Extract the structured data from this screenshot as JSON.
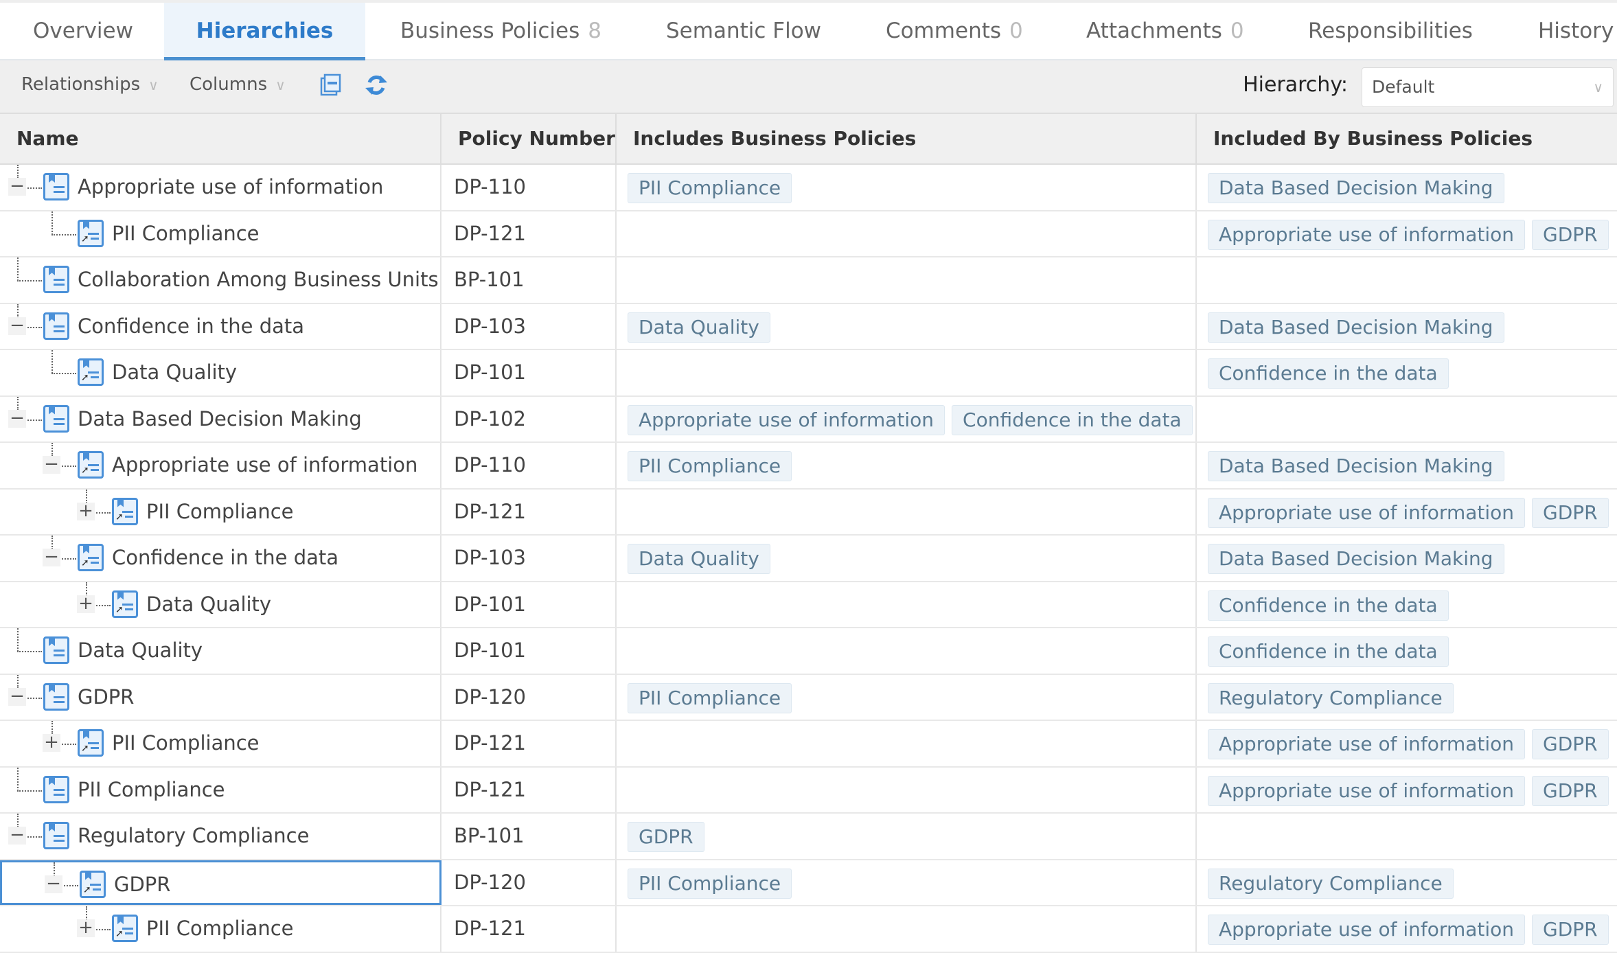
{
  "tabs": [
    {
      "label": "Overview",
      "count": null,
      "active": false
    },
    {
      "label": "Hierarchies",
      "count": null,
      "active": true
    },
    {
      "label": "Business Policies",
      "count": "8",
      "active": false
    },
    {
      "label": "Semantic Flow",
      "count": null,
      "active": false
    },
    {
      "label": "Comments",
      "count": "0",
      "active": false
    },
    {
      "label": "Attachments",
      "count": "0",
      "active": false
    },
    {
      "label": "Responsibilities",
      "count": null,
      "active": false
    },
    {
      "label": "History",
      "count": null,
      "active": false
    }
  ],
  "toolbar": {
    "relationships_label": "Relationships",
    "columns_label": "Columns",
    "collapse_icon": "collapse-all-icon",
    "refresh_icon": "refresh-icon",
    "hierarchy_label": "Hierarchy:",
    "hierarchy_value": "Default"
  },
  "columns": [
    "Name",
    "Policy Number",
    "Includes Business Policies",
    "Included By Business Policies"
  ],
  "accent": "#2e7bc9",
  "rows": [
    {
      "level": 0,
      "expander": "minus",
      "shortcut": false,
      "name": "Appropriate use of information",
      "number": "DP-110",
      "includes": [
        "PII Compliance"
      ],
      "included_by": [
        "Data Based Decision Making"
      ]
    },
    {
      "level": 1,
      "expander": "none",
      "shortcut": true,
      "name": "PII Compliance",
      "number": "DP-121",
      "includes": [],
      "included_by": [
        "Appropriate use of information",
        "GDPR"
      ]
    },
    {
      "level": 0,
      "expander": "none",
      "shortcut": false,
      "name": "Collaboration Among Business Units",
      "number": "BP-101",
      "includes": [],
      "included_by": []
    },
    {
      "level": 0,
      "expander": "minus",
      "shortcut": false,
      "name": "Confidence in the data",
      "number": "DP-103",
      "includes": [
        "Data Quality"
      ],
      "included_by": [
        "Data Based Decision Making"
      ]
    },
    {
      "level": 1,
      "expander": "none",
      "shortcut": true,
      "name": "Data Quality",
      "number": "DP-101",
      "includes": [],
      "included_by": [
        "Confidence in the data"
      ]
    },
    {
      "level": 0,
      "expander": "minus",
      "shortcut": false,
      "name": "Data Based Decision Making",
      "number": "DP-102",
      "includes": [
        "Appropriate use of information",
        "Confidence in the data"
      ],
      "included_by": []
    },
    {
      "level": 1,
      "expander": "minus",
      "shortcut": true,
      "name": "Appropriate use of information",
      "number": "DP-110",
      "includes": [
        "PII Compliance"
      ],
      "included_by": [
        "Data Based Decision Making"
      ]
    },
    {
      "level": 2,
      "expander": "plus",
      "shortcut": true,
      "name": "PII Compliance",
      "number": "DP-121",
      "includes": [],
      "included_by": [
        "Appropriate use of information",
        "GDPR"
      ]
    },
    {
      "level": 1,
      "expander": "minus",
      "shortcut": true,
      "name": "Confidence in the data",
      "number": "DP-103",
      "includes": [
        "Data Quality"
      ],
      "included_by": [
        "Data Based Decision Making"
      ]
    },
    {
      "level": 2,
      "expander": "plus",
      "shortcut": true,
      "name": "Data Quality",
      "number": "DP-101",
      "includes": [],
      "included_by": [
        "Confidence in the data"
      ]
    },
    {
      "level": 0,
      "expander": "none",
      "shortcut": false,
      "name": "Data Quality",
      "number": "DP-101",
      "includes": [],
      "included_by": [
        "Confidence in the data"
      ]
    },
    {
      "level": 0,
      "expander": "minus",
      "shortcut": false,
      "name": "GDPR",
      "number": "DP-120",
      "includes": [
        "PII Compliance"
      ],
      "included_by": [
        "Regulatory Compliance"
      ]
    },
    {
      "level": 1,
      "expander": "plus",
      "shortcut": true,
      "name": "PII Compliance",
      "number": "DP-121",
      "includes": [],
      "included_by": [
        "Appropriate use of information",
        "GDPR"
      ]
    },
    {
      "level": 0,
      "expander": "none",
      "shortcut": false,
      "name": "PII Compliance",
      "number": "DP-121",
      "includes": [],
      "included_by": [
        "Appropriate use of information",
        "GDPR"
      ]
    },
    {
      "level": 0,
      "expander": "minus",
      "shortcut": false,
      "name": "Regulatory Compliance",
      "number": "BP-101",
      "includes": [
        "GDPR"
      ],
      "included_by": []
    },
    {
      "level": 1,
      "expander": "minus",
      "shortcut": true,
      "name": "GDPR",
      "number": "DP-120",
      "includes": [
        "PII Compliance"
      ],
      "included_by": [
        "Regulatory Compliance"
      ],
      "selected": true
    },
    {
      "level": 2,
      "expander": "plus",
      "shortcut": true,
      "name": "PII Compliance",
      "number": "DP-121",
      "includes": [],
      "included_by": [
        "Appropriate use of information",
        "GDPR"
      ]
    }
  ]
}
